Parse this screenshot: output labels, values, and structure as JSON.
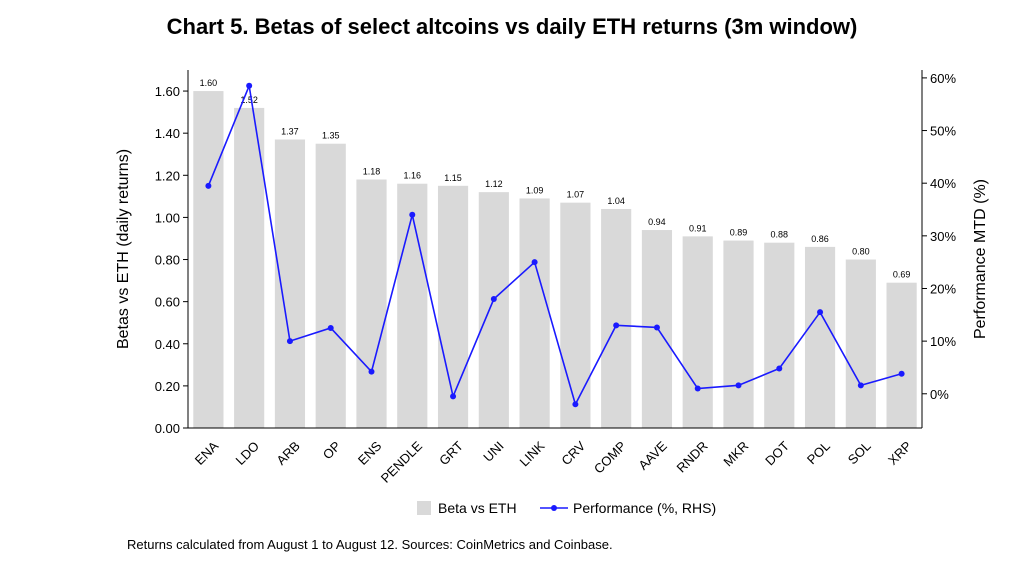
{
  "title": "Chart 5. Betas of select altcoins vs daily ETH returns (3m window)",
  "footnote": "Returns calculated from August 1 to August 12. Sources: CoinMetrics and Coinbase.",
  "colors": {
    "bar": "#d9d9d9",
    "line": "#1a1aff",
    "axis": "#000000"
  },
  "chart_data": {
    "type": "bar+line",
    "categories": [
      "ENA",
      "LDO",
      "ARB",
      "OP",
      "ENS",
      "PENDLE",
      "GRT",
      "UNI",
      "LINK",
      "CRV",
      "COMP",
      "AAVE",
      "RNDR",
      "MKR",
      "DOT",
      "POL",
      "SOL",
      "XRP"
    ],
    "series": [
      {
        "name": "Beta vs ETH",
        "type": "bar",
        "axis": "left",
        "values": [
          1.6,
          1.52,
          1.37,
          1.35,
          1.18,
          1.16,
          1.15,
          1.12,
          1.09,
          1.07,
          1.04,
          0.94,
          0.91,
          0.89,
          0.88,
          0.86,
          0.8,
          0.69
        ],
        "labels": [
          "1.60",
          "1.52",
          "1.37",
          "1.35",
          "1.18",
          "1.16",
          "1.15",
          "1.12",
          "1.09",
          "1.07",
          "1.04",
          "0.94",
          "0.91",
          "0.89",
          "0.88",
          "0.86",
          "0.80",
          "0.69"
        ]
      },
      {
        "name": "Performance (%, RHS)",
        "type": "line",
        "axis": "right",
        "values": [
          39.5,
          58.5,
          10.0,
          12.5,
          4.2,
          34.0,
          -0.5,
          18.0,
          25.0,
          -2.0,
          13.0,
          12.6,
          1.0,
          1.6,
          4.8,
          15.5,
          1.6,
          3.8
        ]
      }
    ],
    "ylabel": "Betas vs ETH (daily returns)",
    "y2label": "Performance MTD (%)",
    "ylim": [
      0,
      1.7
    ],
    "yticks": [
      "0.00",
      "0.20",
      "0.40",
      "0.60",
      "0.80",
      "1.00",
      "1.20",
      "1.40",
      "1.60"
    ],
    "y2lim": [
      -6.5,
      61.5
    ],
    "y2ticks": [
      "0%",
      "10%",
      "20%",
      "30%",
      "40%",
      "50%",
      "60%"
    ],
    "legend_position": "bottom",
    "grid": false
  }
}
